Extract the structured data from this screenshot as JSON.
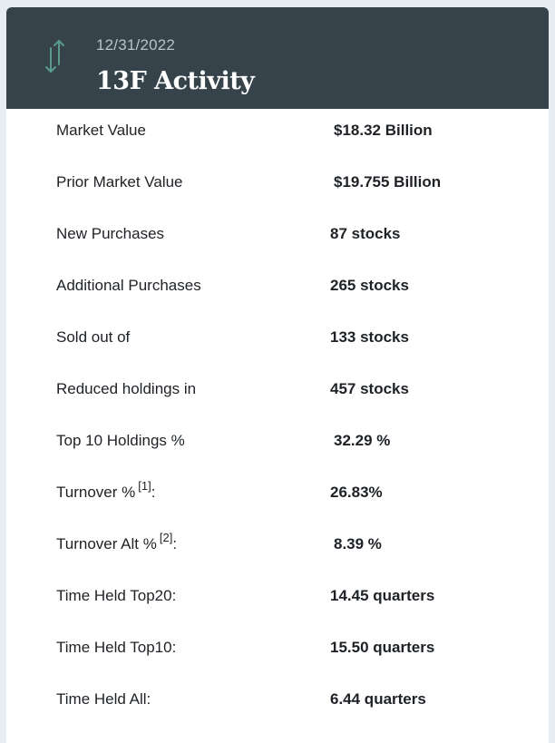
{
  "header": {
    "date": "12/31/2022",
    "title": "13F Activity",
    "icon": "up-down-arrows-icon",
    "icon_color": "#5a9b8c",
    "background": "#36434b"
  },
  "rows": [
    {
      "label": "Market Value",
      "value": "$18.32 Billion"
    },
    {
      "label": "Prior Market Value",
      "value": "$19.755 Billion"
    },
    {
      "label": "New Purchases",
      "value": "87 stocks"
    },
    {
      "label": "Additional Purchases",
      "value": "265 stocks"
    },
    {
      "label": "Sold out of",
      "value": "133 stocks"
    },
    {
      "label": "Reduced holdings in",
      "value": "457 stocks"
    },
    {
      "label": "Top 10 Holdings %",
      "value": "32.29 %"
    },
    {
      "label": "Turnover %",
      "ref": "[1]",
      "suffix": ":",
      "value": "26.83%"
    },
    {
      "label": "Turnover Alt %",
      "ref": "[2]",
      "suffix": ":",
      "value": "8.39 %"
    },
    {
      "label": "Time Held Top20:",
      "value": "14.45 quarters"
    },
    {
      "label": "Time Held Top10:",
      "value": "15.50 quarters"
    },
    {
      "label": "Time Held All:",
      "value": "6.44 quarters"
    }
  ]
}
